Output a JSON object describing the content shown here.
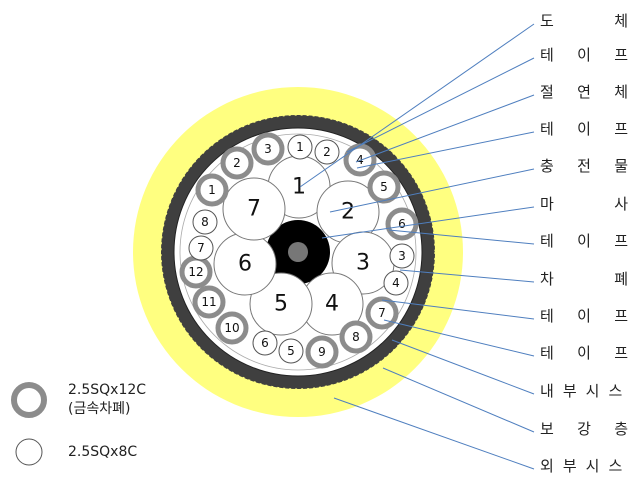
{
  "colors": {
    "outer_sheath": "#ffff80",
    "armor_dark": "#404040",
    "shield_ring": "#8c8c8c",
    "core_outline": "#777777",
    "leader_line": "#4f7fbf",
    "filler_center": "#000000"
  },
  "big_cores": [
    "1",
    "2",
    "3",
    "4",
    "5",
    "6",
    "7"
  ],
  "shielded_cores": [
    "1",
    "2",
    "3",
    "4",
    "5",
    "6",
    "7",
    "8",
    "9",
    "10",
    "11",
    "12"
  ],
  "plain_cores": [
    "1",
    "2",
    "3",
    "4",
    "5",
    "6",
    "7",
    "8"
  ],
  "labels": [
    {
      "chars": [
        "도",
        "체"
      ],
      "style": "spread"
    },
    {
      "chars": [
        "테",
        "이",
        "프"
      ],
      "style": "spread"
    },
    {
      "chars": [
        "절",
        "연",
        "체"
      ],
      "style": "spread"
    },
    {
      "chars": [
        "테",
        "이",
        "프"
      ],
      "style": "spread"
    },
    {
      "chars": [
        "충",
        "전",
        "물"
      ],
      "style": "spread"
    },
    {
      "chars": [
        "마",
        "사"
      ],
      "style": "spread"
    },
    {
      "chars": [
        "테",
        "이",
        "프"
      ],
      "style": "spread"
    },
    {
      "chars": [
        "차",
        "폐"
      ],
      "style": "spread"
    },
    {
      "chars": [
        "테",
        "이",
        "프"
      ],
      "style": "spread"
    },
    {
      "chars": [
        "테",
        "이",
        "프"
      ],
      "style": "spread"
    },
    {
      "chars": [
        "내",
        "부",
        "시",
        "스"
      ],
      "style": "tight"
    },
    {
      "chars": [
        "보",
        "강",
        "층"
      ],
      "style": "spread"
    },
    {
      "chars": [
        "외",
        "부",
        "시",
        "스"
      ],
      "style": "tight"
    }
  ],
  "legend": {
    "shielded_line1": "2.5SQx12C",
    "shielded_line2": "(금속차폐)",
    "plain": "2.5SQx8C"
  }
}
